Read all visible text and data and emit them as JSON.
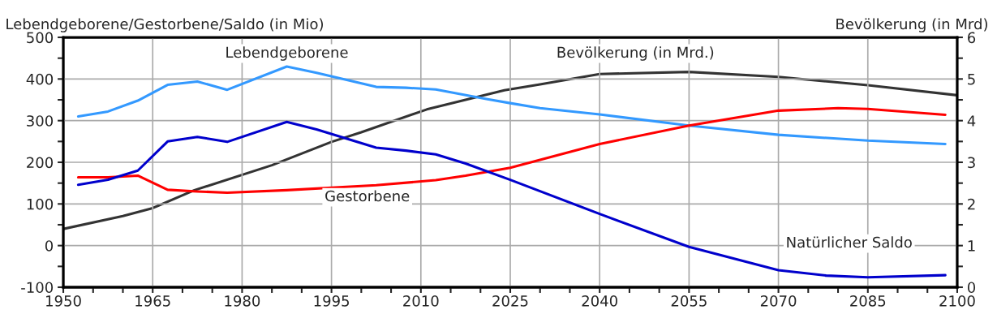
{
  "chart_data": {
    "type": "line",
    "ylabel": "Lebendgeborene/Gestorbene/Saldo (in Mio)",
    "y2label": "Bevölkerung (in Mrd)",
    "xlim": [
      1950,
      2100
    ],
    "ylim": [
      -100,
      500
    ],
    "y2lim": [
      0,
      6
    ],
    "xticks": [
      1950,
      {
        "value": 1955,
        "label": null
      },
      {
        "value": 1960,
        "label": null
      },
      1965,
      {
        "value": 1970,
        "label": null
      },
      {
        "value": 1975,
        "label": null
      },
      1980,
      {
        "value": 1985,
        "label": null
      },
      {
        "value": 1990,
        "label": null
      },
      1995,
      {
        "value": 2000,
        "label": null
      },
      {
        "value": 2005,
        "label": null
      },
      2010,
      {
        "value": 2015,
        "label": null
      },
      {
        "value": 2020,
        "label": null
      },
      2025,
      {
        "value": 2030,
        "label": null
      },
      {
        "value": 2035,
        "label": null
      },
      2040,
      {
        "value": 2045,
        "label": null
      },
      {
        "value": 2050,
        "label": null
      },
      2055,
      {
        "value": 2060,
        "label": null
      },
      {
        "value": 2065,
        "label": null
      },
      2070,
      {
        "value": 2075,
        "label": null
      },
      {
        "value": 2080,
        "label": null
      },
      2085,
      {
        "value": 2090,
        "label": null
      },
      {
        "value": 2095,
        "label": null
      },
      2100
    ],
    "yticks": [
      -100,
      {
        "value": -50,
        "label": null
      },
      0,
      {
        "value": 50,
        "label": null
      },
      100,
      {
        "value": 150,
        "label": null
      },
      200,
      {
        "value": 250,
        "label": null
      },
      300,
      {
        "value": 350,
        "label": null
      },
      400,
      {
        "value": 450,
        "label": null
      },
      500
    ],
    "y2ticks": [
      0,
      {
        "value": 0.5,
        "label": null
      },
      1,
      {
        "value": 1.5,
        "label": null
      },
      2,
      {
        "value": 2.5,
        "label": null
      },
      3,
      {
        "value": 3.5,
        "label": null
      },
      4,
      {
        "value": 4.5,
        "label": null
      },
      5,
      {
        "value": 5.5,
        "label": null
      },
      6
    ],
    "grid": true,
    "legend": false,
    "marker": "none",
    "line_style": "solid",
    "series": [
      {
        "name": "Lebendgeborene",
        "color": "#3399ff",
        "x": [
          1952.5,
          1957.5,
          1962.5,
          1967.5,
          1972.5,
          1977.5,
          1987.5,
          1992.5,
          2002.5,
          2007.5,
          2012.5,
          2021,
          2025,
          2030,
          2040,
          2055,
          2070,
          2085,
          2098
        ],
        "values": [
          310,
          322,
          348,
          386,
          394,
          374,
          430,
          415,
          381,
          379,
          375,
          352,
          342,
          330,
          315,
          288,
          266,
          252,
          244
        ]
      },
      {
        "name": "Gestorbene",
        "color": "#ff0000",
        "x": [
          1952.5,
          1957.5,
          1962.5,
          1967.5,
          1972.5,
          1977.5,
          1987.5,
          2002.5,
          2012.5,
          2017.5,
          2025,
          2040,
          2055,
          2070,
          2080,
          2085,
          2098
        ],
        "values": [
          164,
          164,
          168,
          134,
          130,
          127,
          133,
          145,
          157,
          168,
          187,
          244,
          288,
          324,
          330,
          328,
          314
        ]
      },
      {
        "name": "Natürlicher Saldo",
        "color": "#0000cc",
        "x": [
          1952.5,
          1957.5,
          1962.5,
          1967.5,
          1972.5,
          1977.5,
          1987.5,
          1992.5,
          2002.5,
          2007.5,
          2012.5,
          2017.5,
          2025,
          2040,
          2055,
          2070,
          2078,
          2085,
          2098
        ],
        "values": [
          146,
          158,
          180,
          250,
          261,
          249,
          297,
          279,
          235,
          228,
          219,
          197,
          158,
          76,
          -3,
          -59,
          -72,
          -76,
          -71
        ]
      },
      {
        "name": "Bevölkerung (in Mrd.)",
        "color": "#333333",
        "axis": "y2",
        "x": [
          1950,
          1960,
          1965,
          1972,
          1985,
          1995,
          2000,
          2011,
          2024,
          2030,
          2040,
          2055,
          2070,
          2085,
          2100
        ],
        "values": [
          1.4,
          1.71,
          1.9,
          2.33,
          2.93,
          3.49,
          3.72,
          4.27,
          4.73,
          4.87,
          5.12,
          5.17,
          5.05,
          4.85,
          4.61
        ]
      }
    ]
  }
}
